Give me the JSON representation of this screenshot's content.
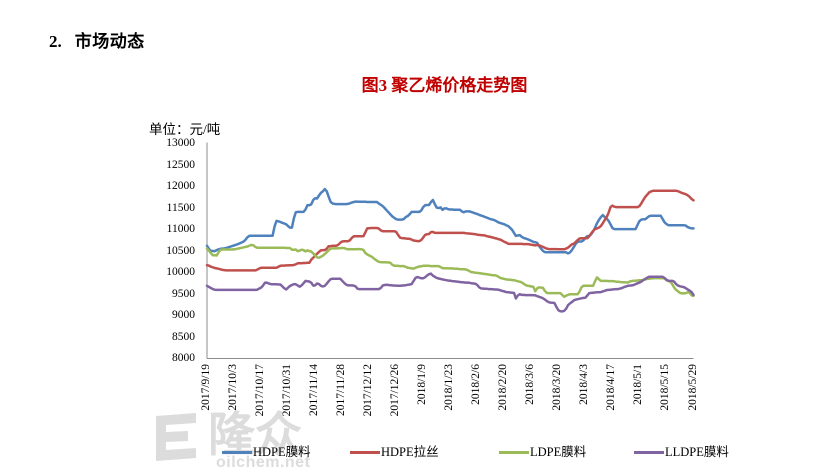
{
  "page": {
    "background": "#ffffff"
  },
  "heading": {
    "number": "2.",
    "text": "市场动态"
  },
  "chart_data": {
    "type": "line",
    "title": "图3 聚乙烯价格走势图",
    "title_color": "#c00000",
    "unit_label": "单位：元/吨",
    "ylabel": "元/吨",
    "ylim": [
      8000,
      13000
    ],
    "y_tick_step": 500,
    "y_ticks": [
      13000,
      12500,
      12000,
      11500,
      11000,
      10500,
      10000,
      9500,
      9000,
      8500,
      8000
    ],
    "x_tick_labels": [
      "2017/9/19",
      "2017/10/3",
      "2017/10/17",
      "2017/10/31",
      "2017/11/14",
      "2017/11/28",
      "2017/12/12",
      "2017/12/26",
      "2018/1/9",
      "2018/1/23",
      "2018/2/6",
      "2018/2/20",
      "2018/3/6",
      "2018/3/20",
      "2018/4/3",
      "2018/4/17",
      "2018/5/1",
      "2018/5/15",
      "2018/5/29"
    ],
    "x_start_date": "2017/9/19",
    "x_end_date": "2018/5/29",
    "sample_interval_days": 1,
    "grid": false,
    "legend_position": "bottom",
    "axis_color": "#8c8c8c",
    "series": [
      {
        "name": "HDPE膜料",
        "color": "#4f81bd",
        "values": [
          10620,
          10550,
          10500,
          10500,
          10495,
          10520,
          10540,
          10550,
          10555,
          10560,
          10570,
          10585,
          10600,
          10615,
          10630,
          10645,
          10660,
          10680,
          10700,
          10720,
          10765,
          10820,
          10855,
          10855,
          10855,
          10855,
          10855,
          10855,
          10855,
          10855,
          10855,
          10855,
          10855,
          10855,
          10855,
          11075,
          11200,
          11190,
          11175,
          11155,
          11140,
          11120,
          11080,
          11045,
          11045,
          11260,
          11400,
          11410,
          11410,
          11410,
          11410,
          11465,
          11565,
          11565,
          11585,
          11685,
          11725,
          11720,
          11790,
          11850,
          11885,
          11940,
          11890,
          11765,
          11645,
          11605,
          11595,
          11590,
          11590,
          11590,
          11590,
          11590,
          11590,
          11595,
          11610,
          11625,
          11640,
          11650,
          11650,
          11645,
          11645,
          11645,
          11645,
          11640,
          11640,
          11640,
          11640,
          11640,
          11640,
          11605,
          11575,
          11545,
          11500,
          11450,
          11400,
          11350,
          11305,
          11270,
          11240,
          11230,
          11230,
          11230,
          11245,
          11290,
          11315,
          11355,
          11410,
          11410,
          11410,
          11410,
          11410,
          11445,
          11520,
          11565,
          11570,
          11570,
          11635,
          11685,
          11590,
          11510,
          11500,
          11515,
          11455,
          11490,
          11490,
          11470,
          11465,
          11465,
          11460,
          11460,
          11460,
          11460,
          11420,
          11400,
          11420,
          11420,
          11420,
          11405,
          11390,
          11375,
          11360,
          11340,
          11325,
          11310,
          11290,
          11275,
          11255,
          11240,
          11230,
          11215,
          11190,
          11165,
          11150,
          11135,
          11120,
          11100,
          11080,
          11040,
          10995,
          10920,
          10850,
          10860,
          10870,
          10830,
          10805,
          10790,
          10775,
          10755,
          10735,
          10715,
          10705,
          10690,
          10615,
          10555,
          10505,
          10475,
          10470,
          10470,
          10470,
          10470,
          10470,
          10470,
          10470,
          10470,
          10470,
          10470,
          10470,
          10445,
          10465,
          10520,
          10590,
          10665,
          10715,
          10720,
          10720,
          10750,
          10810,
          10845,
          10850,
          10890,
          10955,
          11040,
          11145,
          11220,
          11285,
          11335,
          11290,
          11255,
          11200,
          11120,
          11035,
          11010,
          11010,
          11010,
          11010,
          11010,
          11010,
          11010,
          11010,
          11010,
          11010,
          11010,
          11010,
          11105,
          11195,
          11230,
          11240,
          11240,
          11275,
          11310,
          11320,
          11320,
          11320,
          11320,
          11320,
          11320,
          11245,
          11170,
          11125,
          11100,
          11100,
          11100,
          11100,
          11100,
          11100,
          11100,
          11100,
          11100,
          11090,
          11055,
          11040,
          11025,
          11025
        ]
      },
      {
        "name": "HDPE拉丝",
        "color": "#c0504d",
        "values": [
          10170,
          10160,
          10135,
          10120,
          10105,
          10095,
          10085,
          10075,
          10060,
          10055,
          10050,
          10050,
          10050,
          10050,
          10050,
          10050,
          10050,
          10050,
          10050,
          10050,
          10050,
          10050,
          10050,
          10050,
          10050,
          10050,
          10065,
          10090,
          10110,
          10110,
          10110,
          10110,
          10110,
          10110,
          10110,
          10110,
          10110,
          10135,
          10155,
          10160,
          10160,
          10165,
          10165,
          10170,
          10170,
          10175,
          10190,
          10215,
          10215,
          10215,
          10220,
          10220,
          10225,
          10225,
          10300,
          10345,
          10390,
          10435,
          10480,
          10515,
          10520,
          10520,
          10550,
          10610,
          10615,
          10620,
          10620,
          10620,
          10645,
          10690,
          10720,
          10725,
          10725,
          10725,
          10750,
          10805,
          10840,
          10845,
          10845,
          10845,
          10845,
          10845,
          10930,
          11025,
          11030,
          11035,
          11035,
          11035,
          11035,
          11020,
          10980,
          10960,
          10960,
          10960,
          10960,
          10960,
          10960,
          10960,
          10945,
          10875,
          10810,
          10800,
          10795,
          10790,
          10785,
          10785,
          10765,
          10745,
          10740,
          10730,
          10730,
          10755,
          10815,
          10875,
          10890,
          10895,
          10940,
          10945,
          10920,
          10920,
          10920,
          10920,
          10920,
          10920,
          10920,
          10920,
          10920,
          10920,
          10920,
          10920,
          10920,
          10920,
          10920,
          10920,
          10915,
          10910,
          10905,
          10900,
          10895,
          10890,
          10880,
          10875,
          10870,
          10865,
          10860,
          10845,
          10835,
          10825,
          10815,
          10800,
          10790,
          10775,
          10765,
          10740,
          10715,
          10695,
          10670,
          10665,
          10665,
          10665,
          10665,
          10665,
          10665,
          10665,
          10660,
          10660,
          10660,
          10655,
          10645,
          10640,
          10630,
          10640,
          10635,
          10615,
          10595,
          10575,
          10555,
          10545,
          10545,
          10545,
          10545,
          10545,
          10540,
          10540,
          10540,
          10540,
          10555,
          10580,
          10615,
          10655,
          10670,
          10710,
          10755,
          10790,
          10795,
          10795,
          10795,
          10795,
          10845,
          10910,
          10965,
          11010,
          11025,
          11045,
          11080,
          11145,
          11220,
          11285,
          11390,
          11520,
          11555,
          11530,
          11520,
          11520,
          11520,
          11520,
          11520,
          11520,
          11520,
          11520,
          11520,
          11520,
          11520,
          11520,
          11545,
          11610,
          11685,
          11755,
          11810,
          11860,
          11885,
          11900,
          11900,
          11900,
          11900,
          11900,
          11900,
          11900,
          11900,
          11900,
          11900,
          11900,
          11900,
          11900,
          11890,
          11870,
          11850,
          11835,
          11820,
          11795,
          11760,
          11710,
          11680
        ]
      },
      {
        "name": "LDPE膜料",
        "color": "#9bbb59",
        "values": [
          10555,
          10510,
          10450,
          10400,
          10400,
          10395,
          10470,
          10530,
          10535,
          10535,
          10535,
          10535,
          10535,
          10535,
          10540,
          10545,
          10555,
          10565,
          10575,
          10585,
          10595,
          10605,
          10625,
          10640,
          10635,
          10595,
          10575,
          10575,
          10575,
          10575,
          10575,
          10575,
          10575,
          10575,
          10575,
          10575,
          10575,
          10575,
          10575,
          10575,
          10575,
          10570,
          10570,
          10570,
          10530,
          10530,
          10535,
          10495,
          10510,
          10530,
          10520,
          10490,
          10515,
          10500,
          10485,
          10445,
          10395,
          10350,
          10345,
          10365,
          10390,
          10430,
          10470,
          10515,
          10555,
          10560,
          10560,
          10560,
          10565,
          10565,
          10570,
          10570,
          10550,
          10540,
          10540,
          10540,
          10540,
          10540,
          10545,
          10545,
          10540,
          10525,
          10455,
          10420,
          10395,
          10375,
          10345,
          10305,
          10275,
          10250,
          10240,
          10240,
          10240,
          10235,
          10235,
          10225,
          10180,
          10155,
          10155,
          10155,
          10150,
          10150,
          10150,
          10130,
          10110,
          10105,
          10095,
          10090,
          10110,
          10125,
          10140,
          10145,
          10155,
          10155,
          10155,
          10155,
          10150,
          10150,
          10150,
          10150,
          10150,
          10125,
          10100,
          10100,
          10100,
          10095,
          10095,
          10095,
          10090,
          10085,
          10085,
          10080,
          10075,
          10075,
          10070,
          10055,
          10030,
          10010,
          10005,
          9995,
          9990,
          9985,
          9980,
          9970,
          9965,
          9960,
          9950,
          9945,
          9935,
          9935,
          9925,
          9900,
          9875,
          9860,
          9850,
          9840,
          9835,
          9830,
          9825,
          9820,
          9810,
          9795,
          9785,
          9770,
          9740,
          9710,
          9690,
          9685,
          9675,
          9670,
          9565,
          9630,
          9655,
          9650,
          9645,
          9575,
          9525,
          9520,
          9520,
          9520,
          9520,
          9520,
          9520,
          9520,
          9480,
          9435,
          9460,
          9480,
          9495,
          9495,
          9495,
          9495,
          9495,
          9560,
          9655,
          9690,
          9690,
          9690,
          9690,
          9690,
          9690,
          9795,
          9885,
          9845,
          9805,
          9805,
          9805,
          9805,
          9800,
          9800,
          9800,
          9795,
          9785,
          9785,
          9780,
          9775,
          9775,
          9770,
          9765,
          9790,
          9800,
          9810,
          9810,
          9815,
          9820,
          9820,
          9830,
          9840,
          9850,
          9855,
          9860,
          9865,
          9870,
          9870,
          9870,
          9865,
          9865,
          9860,
          9820,
          9800,
          9785,
          9725,
          9650,
          9595,
          9560,
          9525,
          9515,
          9515,
          9520,
          9540,
          9530,
          9470,
          9455
        ]
      },
      {
        "name": "LLDPE膜料",
        "color": "#8064a2",
        "values": [
          9690,
          9665,
          9640,
          9615,
          9600,
          9595,
          9595,
          9595,
          9595,
          9595,
          9595,
          9595,
          9595,
          9595,
          9595,
          9595,
          9595,
          9595,
          9595,
          9595,
          9595,
          9595,
          9595,
          9595,
          9595,
          9595,
          9600,
          9625,
          9650,
          9695,
          9760,
          9765,
          9745,
          9730,
          9725,
          9725,
          9725,
          9720,
          9720,
          9680,
          9635,
          9605,
          9650,
          9685,
          9710,
          9730,
          9725,
          9700,
          9670,
          9700,
          9750,
          9805,
          9795,
          9790,
          9760,
          9695,
          9700,
          9745,
          9730,
          9690,
          9675,
          9690,
          9740,
          9795,
          9845,
          9855,
          9855,
          9855,
          9855,
          9855,
          9810,
          9760,
          9720,
          9700,
          9700,
          9700,
          9695,
          9675,
          9620,
          9615,
          9615,
          9615,
          9615,
          9615,
          9615,
          9615,
          9615,
          9615,
          9615,
          9615,
          9640,
          9695,
          9710,
          9715,
          9710,
          9705,
          9700,
          9695,
          9695,
          9690,
          9690,
          9695,
          9700,
          9705,
          9715,
          9720,
          9730,
          9805,
          9875,
          9895,
          9880,
          9865,
          9865,
          9890,
          9930,
          9960,
          9975,
          9925,
          9900,
          9875,
          9860,
          9850,
          9840,
          9830,
          9820,
          9815,
          9810,
          9800,
          9795,
          9790,
          9785,
          9780,
          9775,
          9770,
          9765,
          9765,
          9760,
          9750,
          9745,
          9740,
          9710,
          9655,
          9630,
          9625,
          9620,
          9620,
          9615,
          9615,
          9610,
          9605,
          9605,
          9600,
          9585,
          9570,
          9560,
          9545,
          9540,
          9535,
          9530,
          9525,
          9395,
          9465,
          9495,
          9480,
          9480,
          9475,
          9475,
          9475,
          9475,
          9470,
          9470,
          9450,
          9435,
          9420,
          9400,
          9375,
          9335,
          9310,
          9300,
          9295,
          9290,
          9200,
          9120,
          9100,
          9095,
          9110,
          9155,
          9240,
          9280,
          9315,
          9350,
          9370,
          9380,
          9390,
          9400,
          9410,
          9415,
          9465,
          9520,
          9525,
          9530,
          9535,
          9540,
          9540,
          9545,
          9560,
          9575,
          9590,
          9595,
          9600,
          9605,
          9610,
          9615,
          9615,
          9625,
          9640,
          9660,
          9675,
          9690,
          9695,
          9700,
          9710,
          9730,
          9750,
          9765,
          9790,
          9820,
          9850,
          9880,
          9900,
          9900,
          9900,
          9900,
          9900,
          9900,
          9900,
          9900,
          9875,
          9830,
          9810,
          9805,
          9805,
          9785,
          9730,
          9695,
          9680,
          9670,
          9660,
          9635,
          9605,
          9580,
          9545,
          9480
        ]
      }
    ]
  },
  "watermark": {
    "brand": "隆众",
    "domain": "oilchem.net",
    "color": "#dcdcdc"
  }
}
